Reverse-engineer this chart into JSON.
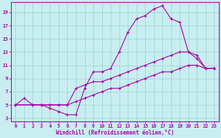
{
  "xlabel": "Windchill (Refroidissement éolien,°C)",
  "bg_color": "#c8eef0",
  "grid_color": "#a0d4d8",
  "line_color": "#aa00aa",
  "spine_color": "#aa00aa",
  "line1_x": [
    0,
    1,
    2,
    3,
    4,
    5,
    6,
    7,
    8,
    9,
    10,
    11,
    12,
    13,
    14,
    15,
    16,
    17,
    18,
    19,
    20,
    21,
    22,
    23
  ],
  "line1_y": [
    5,
    6,
    5,
    5,
    4.5,
    4,
    3.5,
    3.5,
    7.5,
    10,
    10,
    10.5,
    13,
    16,
    18,
    18.5,
    19.5,
    20,
    18,
    17.5,
    13,
    12,
    10.5,
    10.5
  ],
  "line2_x": [
    0,
    2,
    3,
    4,
    5,
    6,
    7,
    8,
    9,
    10,
    11,
    12,
    13,
    14,
    15,
    16,
    17,
    18,
    19,
    20,
    21,
    22,
    23
  ],
  "line2_y": [
    5,
    5,
    5,
    5,
    5,
    5,
    7.5,
    8,
    8.5,
    8.5,
    9,
    9.5,
    10,
    10.5,
    11,
    11.5,
    12,
    12.5,
    13,
    13,
    12.5,
    10.5,
    10.5
  ],
  "line3_x": [
    0,
    2,
    3,
    4,
    5,
    6,
    7,
    8,
    9,
    10,
    11,
    12,
    13,
    14,
    15,
    16,
    17,
    18,
    19,
    20,
    21,
    22,
    23
  ],
  "line3_y": [
    5,
    5,
    5,
    5,
    5,
    5,
    5.5,
    6,
    6.5,
    7,
    7.5,
    7.5,
    8,
    8.5,
    9,
    9.5,
    10,
    10,
    10.5,
    11,
    11,
    10.5,
    10.5
  ],
  "ylim_min": 2.5,
  "ylim_max": 20.5,
  "xlim_min": -0.5,
  "xlim_max": 23.5,
  "yticks": [
    3,
    5,
    7,
    9,
    11,
    13,
    15,
    17,
    19
  ],
  "xticks": [
    0,
    1,
    2,
    3,
    4,
    5,
    6,
    7,
    8,
    9,
    10,
    11,
    12,
    13,
    14,
    15,
    16,
    17,
    18,
    19,
    20,
    21,
    22,
    23
  ],
  "tick_fontsize": 5.0,
  "xlabel_fontsize": 5.5,
  "lw": 0.85,
  "ms": 3.0,
  "mew": 0.9
}
